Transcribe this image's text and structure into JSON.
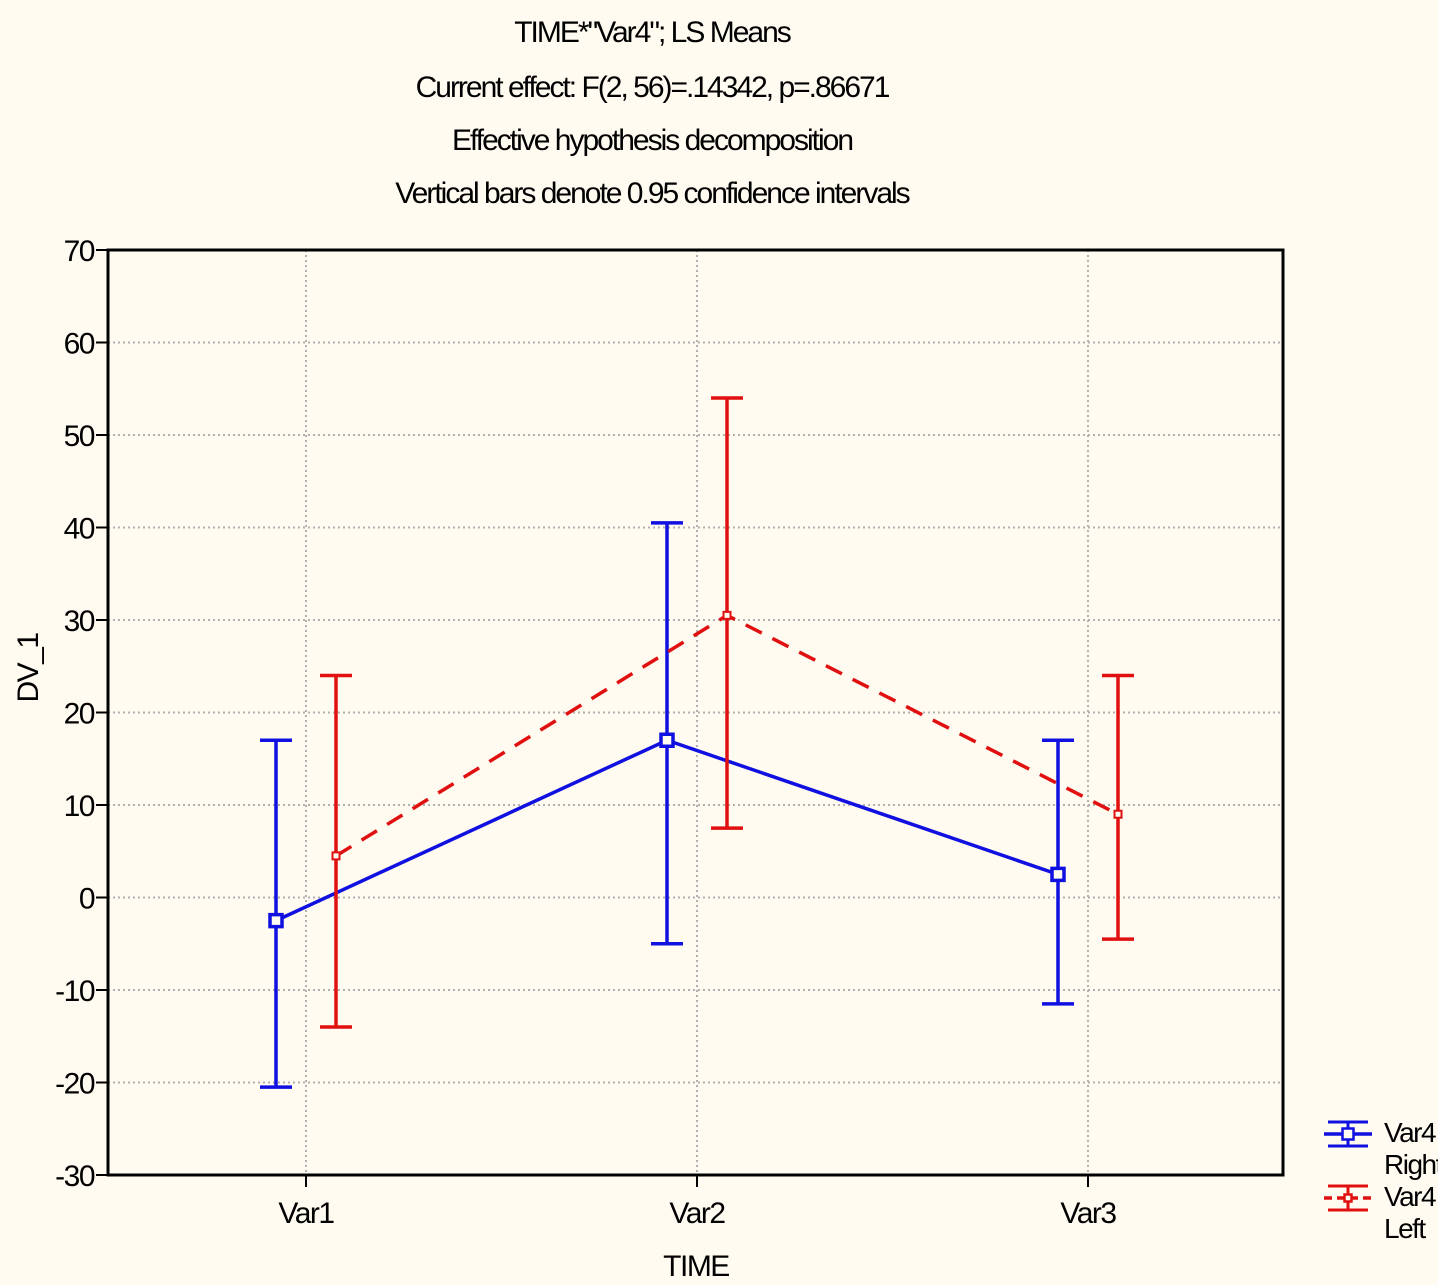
{
  "title_lines": [
    "TIME*\"Var4\"; LS Means",
    "Current effect: F(2, 56)=.14342, p=.86671",
    "Effective hypothesis decomposition",
    "Vertical bars denote 0.95 confidence intervals"
  ],
  "colors": {
    "background": "#fffbf0",
    "series_right": "#1010e0",
    "series_left": "#e01010",
    "grid": "#b0b0b0"
  },
  "chart_data": {
    "type": "line",
    "title": "TIME*\"Var4\"; LS Means",
    "xlabel": "TIME",
    "ylabel": "DV_1",
    "categories": [
      "Var1",
      "Var2",
      "Var3"
    ],
    "ylim": [
      -30,
      70
    ],
    "yticks": [
      -30,
      -20,
      -10,
      0,
      10,
      20,
      30,
      40,
      50,
      60,
      70
    ],
    "yticks_labels": [
      "-30",
      "-20",
      "-10",
      "0",
      "10",
      "20",
      "30",
      "40",
      "50",
      "60",
      "70"
    ],
    "grid": true,
    "legend_position": "bottom-right",
    "error_bars": "0.95 confidence intervals",
    "series": [
      {
        "name": "Var4",
        "legend_lines": [
          "Var4",
          "Right"
        ],
        "color": "#1010e0",
        "line_style": "solid",
        "marker": "square",
        "values": [
          -2.5,
          17,
          2.5
        ],
        "ci_lower": [
          -20.5,
          -5,
          -11.5
        ],
        "ci_upper": [
          17,
          40.5,
          17
        ]
      },
      {
        "name": "Var4",
        "legend_lines": [
          "Var4",
          "Left"
        ],
        "color": "#e01010",
        "line_style": "dashed",
        "marker": "square",
        "values": [
          4.5,
          30.5,
          9
        ],
        "ci_lower": [
          -14,
          7.5,
          -4.5
        ],
        "ci_upper": [
          24,
          54,
          24
        ]
      }
    ]
  }
}
